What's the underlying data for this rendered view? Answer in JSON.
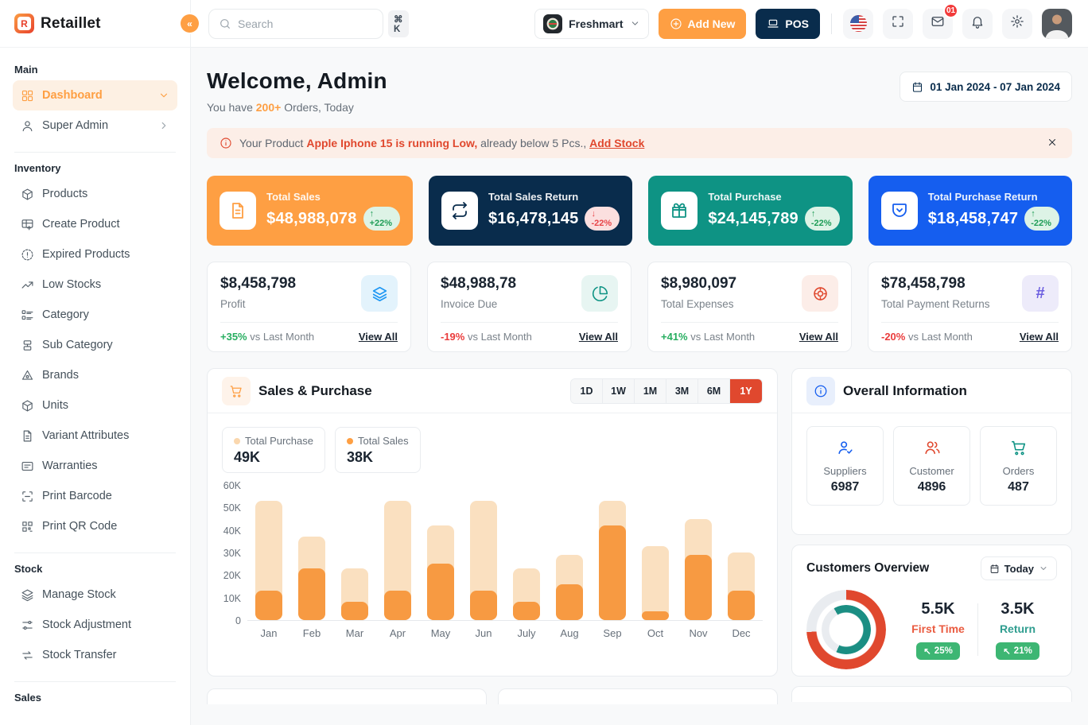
{
  "brand": {
    "name": "Retaillet"
  },
  "header": {
    "search": {
      "placeholder": "Search",
      "shortcut": "⌘ K"
    },
    "store": {
      "name": "Freshmart"
    },
    "add_new_label": "Add New",
    "pos_label": "POS",
    "mail_badge": "01"
  },
  "sidebar": {
    "sections": [
      {
        "label": "Main",
        "items": [
          {
            "label": "Dashboard",
            "icon": "grid-icon",
            "active": true,
            "chevron": "down"
          },
          {
            "label": "Super Admin",
            "icon": "user-icon",
            "chevron": "right"
          }
        ]
      },
      {
        "label": "Inventory",
        "items": [
          {
            "label": "Products",
            "icon": "box-icon"
          },
          {
            "label": "Create Product",
            "icon": "table-plus-icon"
          },
          {
            "label": "Expired Products",
            "icon": "alert-circle-icon"
          },
          {
            "label": "Low Stocks",
            "icon": "trending-up-icon"
          },
          {
            "label": "Category",
            "icon": "list-icon"
          },
          {
            "label": "Sub Category",
            "icon": "subcategory-icon"
          },
          {
            "label": "Brands",
            "icon": "brand-icon"
          },
          {
            "label": "Units",
            "icon": "box-icon"
          },
          {
            "label": "Variant Attributes",
            "icon": "file-icon"
          },
          {
            "label": "Warranties",
            "icon": "card-icon"
          },
          {
            "label": "Print Barcode",
            "icon": "scan-icon"
          },
          {
            "label": "Print QR Code",
            "icon": "qr-icon"
          }
        ]
      },
      {
        "label": "Stock",
        "items": [
          {
            "label": "Manage Stock",
            "icon": "layers-icon"
          },
          {
            "label": "Stock Adjustment",
            "icon": "sliders-icon"
          },
          {
            "label": "Stock Transfer",
            "icon": "transfer-icon"
          }
        ]
      },
      {
        "label": "Sales",
        "items": []
      }
    ]
  },
  "welcome": {
    "title": "Welcome, Admin",
    "subtitle_prefix": "You have ",
    "orders_count": "200+",
    "subtitle_suffix": " Orders, Today",
    "date_range": "01 Jan 2024 - 07 Jan 2024"
  },
  "alert": {
    "prefix": "Your Product ",
    "warning": "Apple Iphone 15 is running Low,",
    "detail": " already below 5 Pcs., ",
    "action": "Add Stock"
  },
  "stat_cards": [
    {
      "title": "Total Sales",
      "value": "$48,988,078",
      "badge": "+22%",
      "trend": "up",
      "bg": "#FE9F43",
      "icon": "file-text-icon"
    },
    {
      "title": "Total Sales Return",
      "value": "$16,478,145",
      "badge": "-22%",
      "trend": "down",
      "bg": "#092C4C",
      "icon": "repeat-icon"
    },
    {
      "title": "Total Purchase",
      "value": "$24,145,789",
      "badge": "-22%",
      "trend": "up",
      "bg": "#0E9384",
      "icon": "gift-icon"
    },
    {
      "title": "Total Purchase Return",
      "value": "$18,458,747",
      "badge": "-22%",
      "trend": "up",
      "bg": "#155EEF",
      "icon": "pocket-icon"
    }
  ],
  "metric_cards": [
    {
      "value": "$8,458,798",
      "label": "Profit",
      "change": "+35%",
      "dir": "pos",
      "suffix": " vs Last Month",
      "link": "View All",
      "icon": "layers-icon",
      "icon_color": "#1E97F3",
      "icon_bg": "#E3F3FC"
    },
    {
      "value": "$48,988,78",
      "label": "Invoice Due",
      "change": "-19%",
      "dir": "neg",
      "suffix": " vs Last Month",
      "link": "View All",
      "icon": "pie-icon",
      "icon_color": "#0E9384",
      "icon_bg": "#E7F5F2"
    },
    {
      "value": "$8,980,097",
      "label": "Total Expenses",
      "change": "+41%",
      "dir": "pos",
      "suffix": " vs Last Month",
      "link": "View All",
      "icon": "target-icon",
      "icon_color": "#E0482E",
      "icon_bg": "#FCEDE8"
    },
    {
      "value": "$78,458,798",
      "label": "Total Payment Returns",
      "change": "-20%",
      "dir": "neg",
      "suffix": " vs Last Month",
      "link": "View All",
      "icon": "hash-icon",
      "icon_color": "#6B5DE0",
      "icon_bg": "#EDEBFA"
    }
  ],
  "sales_purchase": {
    "title": "Sales & Purchase",
    "ranges": [
      "1D",
      "1W",
      "1M",
      "3M",
      "6M",
      "1Y"
    ],
    "active_range": "1Y",
    "legend": [
      {
        "label": "Total Purchase",
        "value": "49K",
        "dot_color": "#FAD7AE"
      },
      {
        "label": "Total Sales",
        "value": "38K",
        "dot_color": "#FE9F43"
      }
    ]
  },
  "chart_data": [
    {
      "type": "bar",
      "title": "Sales & Purchase",
      "categories": [
        "Jan",
        "Feb",
        "Mar",
        "Apr",
        "May",
        "Jun",
        "July",
        "Aug",
        "Sep",
        "Oct",
        "Nov",
        "Dec"
      ],
      "series": [
        {
          "name": "Total Purchase",
          "color": "#FAE0C0",
          "values": [
            53,
            37,
            23,
            53,
            42,
            53,
            23,
            29,
            53,
            33,
            45,
            30
          ]
        },
        {
          "name": "Total Sales",
          "color": "#F79A42",
          "values": [
            13,
            23,
            8,
            13,
            25,
            13,
            8,
            16,
            42,
            4,
            29,
            13
          ]
        }
      ],
      "unit": "K",
      "ylim": [
        0,
        60
      ],
      "yticks": [
        "0",
        "10K",
        "20K",
        "30K",
        "40K",
        "50K",
        "60K"
      ],
      "grid": false,
      "legend_position": "top-left"
    },
    {
      "type": "donut",
      "title": "Customers Overview",
      "segments": [
        {
          "label": "First Time",
          "display": "5.5K",
          "color": "#E0482E",
          "percent": 74,
          "change": "25%"
        },
        {
          "label": "Return",
          "display": "3.5K",
          "color": "#1B8E83",
          "percent": 65,
          "change": "21%"
        }
      ],
      "track_color": "#E9ECF0"
    }
  ],
  "overall_information": {
    "title": "Overall Information",
    "items": [
      {
        "label": "Suppliers",
        "value": "6987",
        "icon": "user-check-icon",
        "color": "#155EEF"
      },
      {
        "label": "Customer",
        "value": "4896",
        "icon": "users-icon",
        "color": "#E0482E"
      },
      {
        "label": "Orders",
        "value": "487",
        "icon": "cart-icon",
        "color": "#0E9384"
      }
    ]
  },
  "customers_overview": {
    "title": "Customers Overview",
    "period": "Today",
    "badge_arrow": "↖"
  }
}
